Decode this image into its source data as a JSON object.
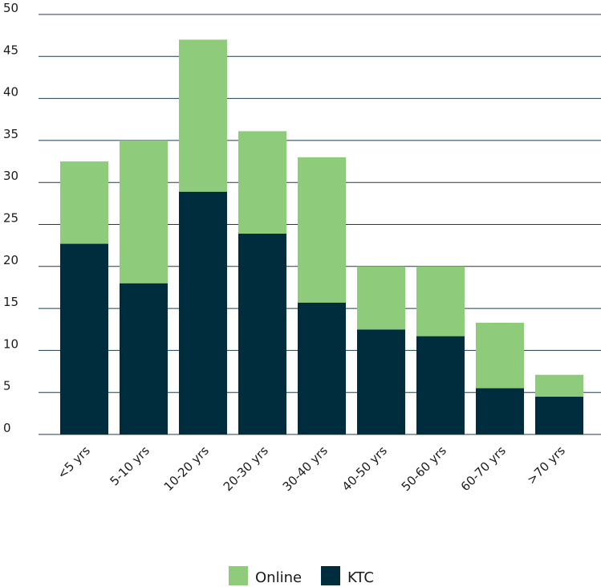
{
  "chart_data": {
    "type": "bar",
    "stacked": true,
    "categories": [
      "<5 yrs",
      "5-10 yrs",
      "10-20 yrs",
      "20-30 yrs",
      "30-40 yrs",
      "40-50 yrs",
      "50-60 yrs",
      "60-70 yrs",
      ">70 yrs"
    ],
    "series": [
      {
        "name": "KTC",
        "color": "#002d3d",
        "values": [
          22.7,
          18.0,
          28.9,
          23.9,
          15.7,
          12.5,
          11.7,
          5.5,
          4.5
        ]
      },
      {
        "name": "Online",
        "color": "#8ecb7a",
        "values": [
          9.8,
          17.0,
          18.1,
          12.2,
          17.3,
          7.5,
          8.3,
          7.8,
          2.6
        ]
      }
    ],
    "yticks": [
      "0",
      "5",
      "10",
      "15",
      "20",
      "25",
      "30",
      "35",
      "40",
      "45",
      "50"
    ],
    "ylim": [
      0,
      50
    ],
    "grid": true,
    "legend": {
      "placement": "bottom-center",
      "entries": [
        "Online",
        "KTC"
      ]
    }
  }
}
